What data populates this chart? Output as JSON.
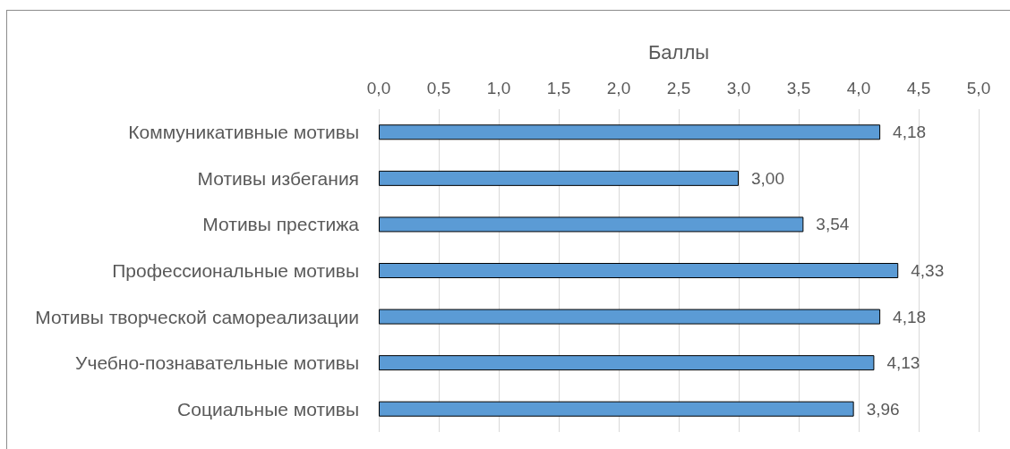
{
  "chart_data": {
    "type": "bar",
    "orientation": "horizontal",
    "xlabel": "Баллы",
    "categories": [
      "Коммуникативные мотивы",
      "Мотивы избегания",
      "Мотивы престижа",
      "Профессиональные мотивы",
      "Мотивы творческой самореализации",
      "Учебно-познавательные мотивы",
      "Социальные мотивы"
    ],
    "values": [
      4.18,
      3.0,
      3.54,
      4.33,
      4.18,
      4.13,
      3.96
    ],
    "value_labels": [
      "4,18",
      "3,00",
      "3,54",
      "4,33",
      "4,18",
      "4,13",
      "3,96"
    ],
    "color": "#5b9bd5",
    "xlim": [
      0,
      5
    ],
    "xticks": [
      {
        "value": 0,
        "label": "0,0"
      },
      {
        "value": 0.5,
        "label": "0,5"
      },
      {
        "value": 1,
        "label": "1,0"
      },
      {
        "value": 1.5,
        "label": "1,5"
      },
      {
        "value": 2,
        "label": "2,0"
      },
      {
        "value": 2.5,
        "label": "2,5"
      },
      {
        "value": 3,
        "label": "3,0"
      },
      {
        "value": 3.5,
        "label": "3,5"
      },
      {
        "value": 4,
        "label": "4,0"
      },
      {
        "value": 4.5,
        "label": "4,5"
      },
      {
        "value": 5,
        "label": "5,0"
      }
    ],
    "grid": "x"
  }
}
